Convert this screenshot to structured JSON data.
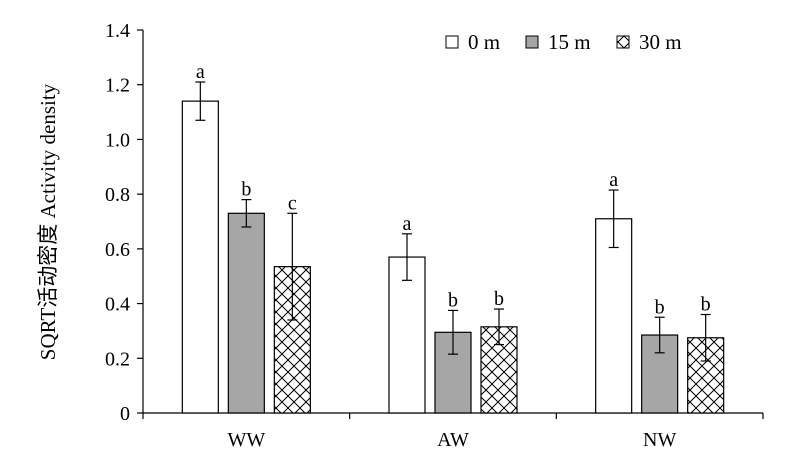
{
  "chart_data": {
    "type": "bar",
    "title": "",
    "xlabel": "",
    "ylabel": "SQRT活动密度 Activity density",
    "ylim": [
      0,
      1.4
    ],
    "yticks": [
      "0",
      "0.2",
      "0.4",
      "0.6",
      "0.8",
      "1.0",
      "1.2",
      "1.4"
    ],
    "categories": [
      "WW",
      "AW",
      "NW"
    ],
    "legend_position": "top-right",
    "series": [
      {
        "name": "0 m",
        "fill": "#ffffff",
        "pattern": "none",
        "values": [
          1.14,
          0.57,
          0.71
        ],
        "errors": [
          0.07,
          0.085,
          0.105
        ],
        "letters": [
          "a",
          "a",
          "a"
        ]
      },
      {
        "name": "15 m",
        "fill": "#a6a6a6",
        "pattern": "solid",
        "values": [
          0.73,
          0.295,
          0.285
        ],
        "errors": [
          0.05,
          0.08,
          0.065
        ],
        "letters": [
          "b",
          "b",
          "b"
        ]
      },
      {
        "name": "30 m",
        "fill": "#ffffff",
        "pattern": "crosshatch",
        "values": [
          0.535,
          0.315,
          0.275
        ],
        "errors": [
          0.195,
          0.065,
          0.085
        ],
        "letters": [
          "c",
          "b",
          "b"
        ]
      }
    ]
  }
}
